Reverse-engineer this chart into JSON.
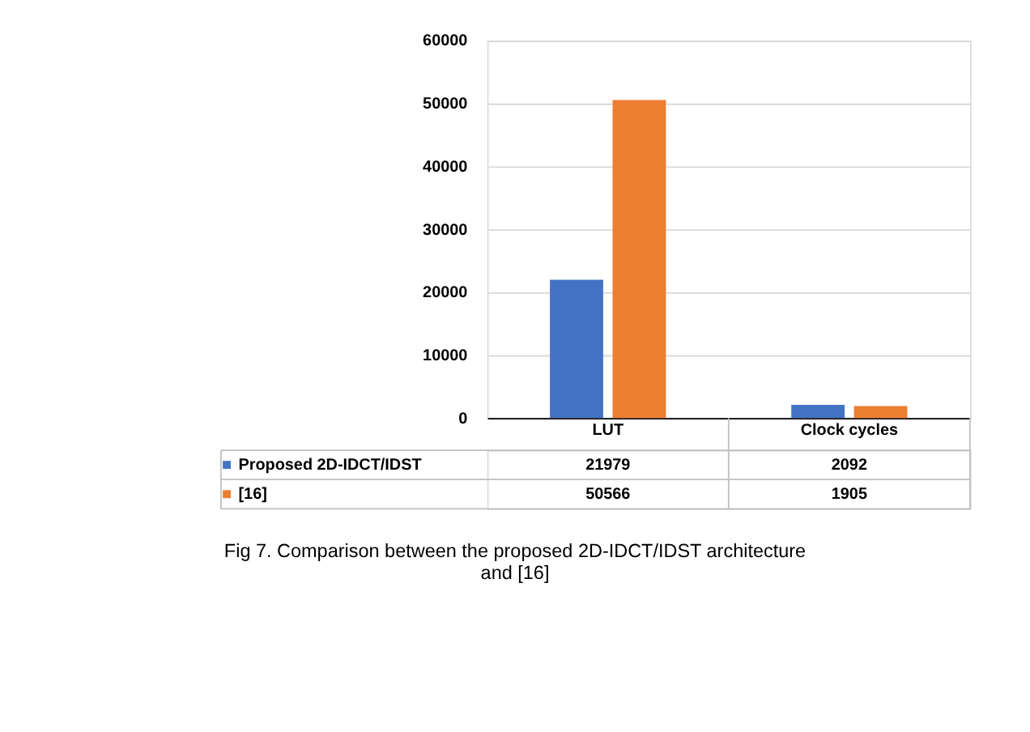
{
  "chart_data": {
    "type": "bar",
    "categories": [
      "LUT",
      "Clock cycles"
    ],
    "series": [
      {
        "name": "Proposed 2D-IDCT/IDST",
        "color": "#4472c4",
        "values": [
          21979,
          2092
        ]
      },
      {
        "name": "[16]",
        "color": "#ed7d31",
        "values": [
          50566,
          1905
        ]
      }
    ],
    "ylim": [
      0,
      60000
    ],
    "yticks": [
      0,
      10000,
      20000,
      30000,
      40000,
      50000,
      60000
    ],
    "grid": "y",
    "data_labels": true,
    "legend": "bottom",
    "annotations": [
      "Fig 7. Comparison between the proposed 2D-IDCT/IDST architecture and [16]"
    ]
  }
}
